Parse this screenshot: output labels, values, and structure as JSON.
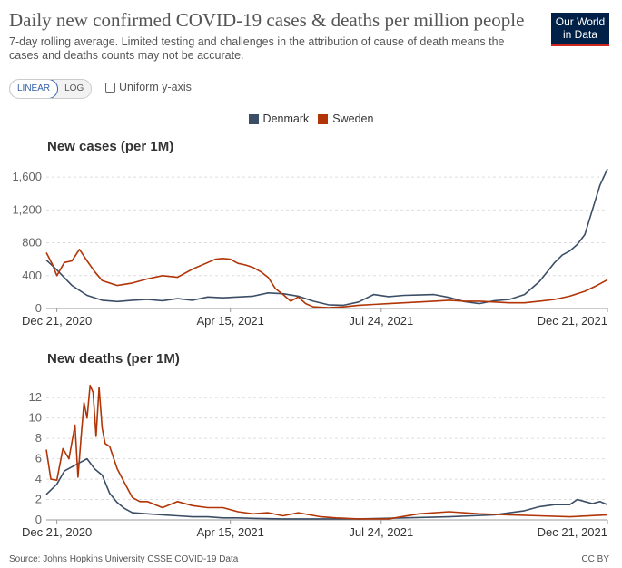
{
  "title": "Daily new confirmed COVID-19 cases & deaths per million people",
  "subtitle": "7-day rolling average. Limited testing and challenges in the attribution of cause of death means the cases and deaths counts may not be accurate.",
  "logo": {
    "line1": "Our World",
    "line2": "in Data",
    "bg": "#002147",
    "accent": "#ce261e"
  },
  "controls": {
    "linear_label": "LINEAR",
    "log_label": "LOG",
    "uniform_label": "Uniform y-axis",
    "active_scale": "LINEAR"
  },
  "legend": [
    {
      "name": "Denmark",
      "color": "#3c4e66"
    },
    {
      "name": "Sweden",
      "color": "#b13507"
    }
  ],
  "footer": {
    "source": "Source: Johns Hopkins University CSSE COVID-19 Data",
    "license": "CC BY"
  },
  "chart_data": [
    {
      "type": "line",
      "title": "New cases (per 1M)",
      "x_tick_labels": [
        "Dec 21, 2020",
        "Apr 15, 2021",
        "Jul 24, 2021",
        "Dec 21, 2021"
      ],
      "x_tick_days": [
        0,
        115,
        215,
        365
      ],
      "xlim": [
        -7,
        365
      ],
      "ylim": [
        0,
        1800
      ],
      "y_ticks": [
        0,
        400,
        800,
        1200,
        1600
      ],
      "y_tick_labels": [
        "0",
        "400",
        "800",
        "1,200",
        "1,600"
      ],
      "series": [
        {
          "name": "Denmark",
          "color": "#3c4e66",
          "x": [
            -7,
            0,
            10,
            20,
            30,
            40,
            50,
            60,
            70,
            80,
            90,
            100,
            110,
            120,
            130,
            140,
            150,
            160,
            170,
            180,
            190,
            200,
            210,
            220,
            230,
            240,
            250,
            260,
            270,
            280,
            290,
            300,
            310,
            320,
            330,
            335,
            340,
            345,
            350,
            355,
            360,
            365
          ],
          "y": [
            590,
            470,
            280,
            160,
            100,
            85,
            100,
            110,
            95,
            120,
            100,
            140,
            130,
            140,
            150,
            190,
            180,
            150,
            90,
            45,
            40,
            80,
            170,
            145,
            160,
            165,
            170,
            135,
            85,
            60,
            95,
            110,
            170,
            330,
            560,
            650,
            700,
            780,
            900,
            1200,
            1500,
            1700
          ]
        },
        {
          "name": "Sweden",
          "color": "#b13507",
          "x": [
            -7,
            -3,
            0,
            5,
            10,
            15,
            20,
            25,
            30,
            40,
            50,
            60,
            70,
            80,
            90,
            100,
            105,
            110,
            115,
            120,
            125,
            130,
            135,
            140,
            145,
            150,
            155,
            160,
            165,
            170,
            180,
            190,
            200,
            210,
            220,
            230,
            240,
            250,
            260,
            270,
            280,
            290,
            300,
            310,
            320,
            330,
            340,
            350,
            358,
            365
          ],
          "y": [
            680,
            540,
            400,
            560,
            580,
            720,
            580,
            450,
            340,
            280,
            310,
            360,
            400,
            380,
            480,
            560,
            600,
            610,
            600,
            550,
            530,
            500,
            450,
            380,
            240,
            170,
            90,
            140,
            60,
            20,
            10,
            20,
            40,
            50,
            60,
            70,
            80,
            90,
            100,
            90,
            90,
            80,
            70,
            70,
            90,
            110,
            150,
            210,
            280,
            350
          ]
        }
      ]
    },
    {
      "type": "line",
      "title": "New deaths (per 1M)",
      "x_tick_labels": [
        "Dec 21, 2020",
        "Apr 15, 2021",
        "Jul 24, 2021",
        "Dec 21, 2021"
      ],
      "x_tick_days": [
        0,
        115,
        215,
        365
      ],
      "xlim": [
        -7,
        365
      ],
      "ylim": [
        0,
        13.8
      ],
      "y_ticks": [
        0,
        2,
        4,
        6,
        8,
        10,
        12
      ],
      "y_tick_labels": [
        "0",
        "2",
        "4",
        "6",
        "8",
        "10",
        "12"
      ],
      "series": [
        {
          "name": "Denmark",
          "color": "#3c4e66",
          "x": [
            -7,
            0,
            5,
            10,
            15,
            20,
            25,
            30,
            35,
            40,
            45,
            50,
            60,
            70,
            80,
            90,
            100,
            110,
            120,
            130,
            150,
            170,
            200,
            230,
            260,
            290,
            310,
            320,
            330,
            340,
            345,
            350,
            355,
            360,
            365
          ],
          "y": [
            2.5,
            3.5,
            4.8,
            5.2,
            5.6,
            6.0,
            5.0,
            4.4,
            2.6,
            1.7,
            1.1,
            0.7,
            0.6,
            0.5,
            0.4,
            0.3,
            0.3,
            0.2,
            0.2,
            0.15,
            0.1,
            0.1,
            0.1,
            0.2,
            0.3,
            0.5,
            0.9,
            1.3,
            1.5,
            1.5,
            2.0,
            1.8,
            1.6,
            1.8,
            1.5
          ]
        },
        {
          "name": "Sweden",
          "color": "#b13507",
          "x": [
            -7,
            -4,
            0,
            4,
            8,
            12,
            14,
            16,
            18,
            20,
            22,
            24,
            26,
            28,
            30,
            32,
            35,
            40,
            45,
            50,
            55,
            60,
            70,
            80,
            90,
            100,
            110,
            120,
            130,
            140,
            150,
            160,
            175,
            185,
            200,
            220,
            240,
            260,
            280,
            300,
            320,
            340,
            365
          ],
          "y": [
            6.9,
            4.0,
            3.9,
            7.0,
            6.0,
            9.3,
            4.2,
            8.0,
            11.5,
            10.0,
            13.2,
            12.5,
            8.2,
            13.0,
            9.0,
            7.5,
            7.2,
            5.0,
            3.6,
            2.2,
            1.8,
            1.8,
            1.2,
            1.8,
            1.4,
            1.2,
            1.2,
            0.8,
            0.6,
            0.7,
            0.4,
            0.7,
            0.3,
            0.2,
            0.1,
            0.1,
            0.6,
            0.8,
            0.6,
            0.5,
            0.4,
            0.3,
            0.5
          ]
        }
      ]
    }
  ]
}
